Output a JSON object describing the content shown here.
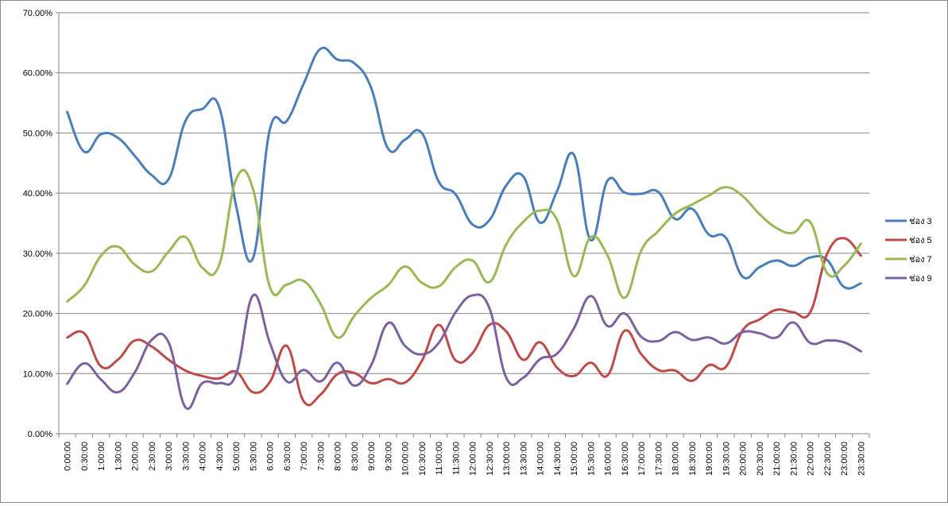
{
  "chart_data": {
    "type": "line",
    "title": "",
    "xlabel": "",
    "ylabel": "",
    "ylim": [
      0,
      70
    ],
    "y_ticks": [
      "0.00%",
      "10.00%",
      "20.00%",
      "30.00%",
      "40.00%",
      "50.00%",
      "60.00%",
      "70.00%"
    ],
    "grid": "horizontal",
    "legend": "right",
    "categories": [
      "0:00:00",
      "0:30:00",
      "1:00:00",
      "1:30:00",
      "2:00:00",
      "2:30:00",
      "3:00:00",
      "3:30:00",
      "4:00:00",
      "4:30:00",
      "5:00:00",
      "5:30:00",
      "6:00:00",
      "6:30:00",
      "7:00:00",
      "7:30:00",
      "8:00:00",
      "8:30:00",
      "9:00:00",
      "9:30:00",
      "10:00:00",
      "10:30:00",
      "11:00:00",
      "11:30:00",
      "12:00:00",
      "12:30:00",
      "13:00:00",
      "13:30:00",
      "14:00:00",
      "14:30:00",
      "15:00:00",
      "15:30:00",
      "16:00:00",
      "16:30:00",
      "17:00:00",
      "17:30:00",
      "18:00:00",
      "18:30:00",
      "19:00:00",
      "19:30:00",
      "20:00:00",
      "20:30:00",
      "21:00:00",
      "21:30:00",
      "22:00:00",
      "22:30:00",
      "23:00:00",
      "23:30:00"
    ],
    "series": [
      {
        "name": "ช่อง 3",
        "color": "#4a7ebb",
        "values": [
          53.5,
          46.9,
          49.8,
          49.2,
          46.2,
          43.0,
          42.3,
          52.0,
          54.0,
          54.3,
          37.9,
          29.2,
          50.6,
          52.0,
          58.2,
          64.0,
          62.2,
          61.6,
          57.5,
          47.4,
          48.9,
          50.0,
          41.9,
          39.8,
          34.8,
          35.5,
          41.3,
          42.8,
          35.1,
          40.3,
          46.4,
          32.2,
          42.1,
          40.1,
          39.9,
          40.2,
          35.7,
          37.4,
          33.1,
          32.6,
          26.1,
          27.7,
          28.8,
          27.9,
          29.3,
          28.9,
          24.4,
          25.0
        ]
      },
      {
        "name": "ช่อง 5",
        "color": "#be4b48",
        "values": [
          16.0,
          16.7,
          11.2,
          12.3,
          15.5,
          14.5,
          12.3,
          10.5,
          9.6,
          9.2,
          10.3,
          6.9,
          8.6,
          14.6,
          5.4,
          6.5,
          9.9,
          10.1,
          8.4,
          9.1,
          8.5,
          12.1,
          18.1,
          12.2,
          13.4,
          18.1,
          17.0,
          12.3,
          15.2,
          11.0,
          9.6,
          11.8,
          9.7,
          17.1,
          13.2,
          10.6,
          10.5,
          8.8,
          11.4,
          11.1,
          17.2,
          19.0,
          20.6,
          20.2,
          20.2,
          29.9,
          32.5,
          29.6
        ]
      },
      {
        "name": "ช่อง 7",
        "color": "#98b954",
        "values": [
          22.0,
          24.6,
          29.6,
          31.1,
          28.1,
          27.0,
          30.3,
          32.7,
          27.6,
          28.1,
          42.3,
          40.7,
          24.4,
          24.8,
          25.4,
          21.6,
          16.0,
          19.6,
          22.6,
          24.7,
          27.8,
          25.1,
          24.5,
          27.7,
          28.8,
          25.2,
          31.5,
          35.2,
          37.1,
          35.6,
          26.2,
          32.7,
          29.6,
          22.6,
          30.5,
          33.7,
          36.6,
          38.1,
          39.6,
          41.0,
          39.5,
          36.5,
          34.2,
          33.4,
          35.2,
          26.7,
          27.9,
          31.6
        ]
      },
      {
        "name": "ช่อง 9",
        "color": "#7d60a0",
        "values": [
          8.3,
          11.7,
          9.0,
          6.9,
          10.2,
          15.6,
          15.2,
          4.4,
          8.4,
          8.4,
          9.9,
          23.0,
          15.1,
          8.7,
          10.6,
          8.7,
          11.8,
          8.0,
          11.4,
          18.4,
          14.6,
          13.2,
          15.1,
          20.2,
          23.0,
          20.9,
          9.3,
          9.3,
          12.4,
          13.3,
          17.5,
          22.9,
          17.9,
          20.0,
          16.1,
          15.4,
          16.9,
          15.6,
          16.0,
          15.0,
          16.9,
          16.7,
          16.0,
          18.5,
          15.1,
          15.5,
          15.2,
          13.7
        ]
      }
    ]
  }
}
